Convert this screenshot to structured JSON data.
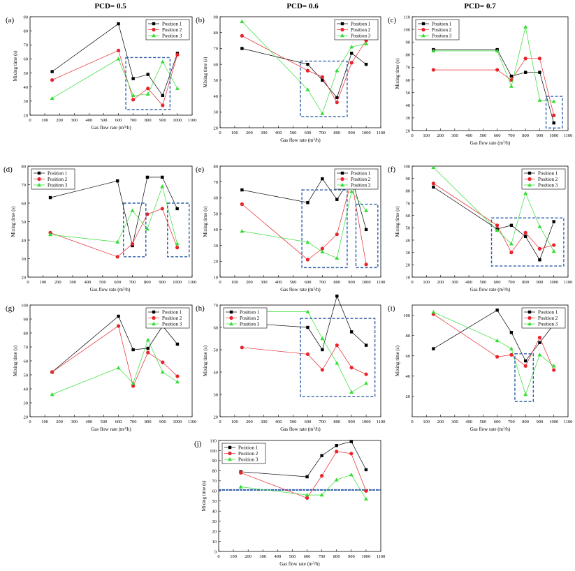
{
  "column_headers": [
    "PCD= 0.5",
    "PCD= 0.6",
    "PCD= 0.7"
  ],
  "colors": {
    "position_1": "#000000",
    "position_2": "#e8232a",
    "position_3": "#33dd33",
    "highlight_box": "#2e5ea8",
    "line_j": "#2e5ea8"
  },
  "chart_data": [
    {
      "id": "a",
      "type": "line",
      "panel_label": "(a)",
      "xlabel": "Gas flow rate (m³/h)",
      "ylabel": "Mixing time (s)",
      "xlim": [
        0,
        1100
      ],
      "ylim": [
        20,
        90
      ],
      "xticks": [
        0,
        100,
        200,
        300,
        400,
        500,
        600,
        700,
        800,
        900,
        1000,
        1100
      ],
      "yticks": [
        20,
        30,
        40,
        50,
        60,
        70,
        80,
        90
      ],
      "legend": "top-right",
      "x": [
        150,
        600,
        700,
        800,
        900,
        1000
      ],
      "series": [
        {
          "name": "Position 1",
          "values": [
            51,
            85,
            46,
            49,
            34,
            64
          ]
        },
        {
          "name": "Position 2",
          "values": [
            45,
            66,
            31,
            39,
            27,
            63
          ]
        },
        {
          "name": "Position 3",
          "values": [
            32,
            60,
            34,
            35,
            58,
            39
          ]
        }
      ],
      "highlight_boxes": [
        {
          "x": [
            650,
            950
          ],
          "y": [
            24,
            61
          ]
        }
      ]
    },
    {
      "id": "b",
      "type": "line",
      "panel_label": "(b)",
      "xlabel": "Gas flow rate (m³/h)",
      "ylabel": "Mixing time (s)",
      "xlim": [
        0,
        1100
      ],
      "ylim": [
        20,
        90
      ],
      "xticks": [
        0,
        100,
        200,
        300,
        400,
        500,
        600,
        700,
        800,
        900,
        1000,
        1100
      ],
      "yticks": [
        20,
        30,
        40,
        50,
        60,
        70,
        80,
        90
      ],
      "legend": "top-right",
      "x": [
        150,
        600,
        700,
        800,
        900,
        1000
      ],
      "series": [
        {
          "name": "Position 1",
          "values": [
            70,
            60,
            50,
            39,
            67,
            60
          ]
        },
        {
          "name": "Position 2",
          "values": [
            78,
            56,
            52,
            36,
            61,
            75
          ]
        },
        {
          "name": "Position 3",
          "values": [
            87,
            44,
            29,
            56,
            71,
            73
          ]
        }
      ],
      "highlight_boxes": [
        {
          "x": [
            550,
            870
          ],
          "y": [
            27,
            62
          ]
        }
      ]
    },
    {
      "id": "c",
      "type": "line",
      "panel_label": "(c)",
      "xlabel": "Gas flow rate (m³/h)",
      "ylabel": "Mixing time (s)",
      "xlim": [
        0,
        1100
      ],
      "ylim": [
        20,
        110
      ],
      "xticks": [
        0,
        100,
        200,
        300,
        400,
        500,
        600,
        700,
        800,
        900,
        1000,
        1100
      ],
      "yticks": [
        20,
        30,
        40,
        50,
        60,
        70,
        80,
        90,
        100,
        110
      ],
      "legend": "top-left",
      "x": [
        150,
        600,
        700,
        800,
        900,
        1000
      ],
      "series": [
        {
          "name": "Position 1",
          "values": [
            84,
            84,
            63,
            66,
            66,
            26
          ]
        },
        {
          "name": "Position 2",
          "values": [
            68,
            68,
            60,
            77,
            77,
            32
          ]
        },
        {
          "name": "Position 3",
          "values": [
            83,
            83,
            55,
            102,
            44,
            43
          ]
        }
      ],
      "highlight_boxes": [
        {
          "x": [
            945,
            1060
          ],
          "y": [
            22,
            47
          ]
        }
      ]
    },
    {
      "id": "d",
      "type": "line",
      "panel_label": "(d)",
      "xlabel": "Gas flow rate (m³/h)",
      "ylabel": "Mixing time (s)",
      "xlim": [
        0,
        1100
      ],
      "ylim": [
        20,
        80
      ],
      "xticks": [
        0,
        100,
        200,
        300,
        400,
        500,
        600,
        700,
        800,
        900,
        1000,
        1100
      ],
      "yticks": [
        20,
        30,
        40,
        50,
        60,
        70,
        80
      ],
      "legend": "top-left",
      "x": [
        150,
        600,
        700,
        800,
        900,
        1000
      ],
      "series": [
        {
          "name": "Position 1",
          "values": [
            63,
            72,
            37,
            74,
            74,
            57
          ]
        },
        {
          "name": "Position 2",
          "values": [
            44,
            31,
            38,
            54,
            57,
            36
          ]
        },
        {
          "name": "Position 3",
          "values": [
            43,
            39,
            56,
            46,
            69,
            38
          ]
        }
      ],
      "highlight_boxes": [
        {
          "x": [
            640,
            790
          ],
          "y": [
            31,
            60
          ]
        },
        {
          "x": [
            935,
            1080
          ],
          "y": [
            31,
            60
          ]
        }
      ]
    },
    {
      "id": "e",
      "type": "line",
      "panel_label": "(e)",
      "xlabel": "Gas flow rate (m³/h)",
      "ylabel": "Mixing time (s)",
      "xlim": [
        0,
        1100
      ],
      "ylim": [
        10,
        80
      ],
      "xticks": [
        0,
        100,
        200,
        300,
        400,
        500,
        600,
        700,
        800,
        900,
        1000,
        1100
      ],
      "yticks": [
        10,
        20,
        30,
        40,
        50,
        60,
        70,
        80
      ],
      "legend": "top-right",
      "x": [
        150,
        600,
        700,
        800,
        900,
        1000
      ],
      "series": [
        {
          "name": "Position 1",
          "values": [
            65,
            57,
            72,
            59,
            73,
            40
          ]
        },
        {
          "name": "Position 2",
          "values": [
            56,
            21,
            28,
            37,
            71,
            18
          ]
        },
        {
          "name": "Position 3",
          "values": [
            39,
            32,
            26,
            22,
            64,
            52
          ]
        }
      ],
      "highlight_boxes": [
        {
          "x": [
            560,
            870
          ],
          "y": [
            16,
            65
          ]
        },
        {
          "x": [
            930,
            1080
          ],
          "y": [
            16,
            56
          ]
        }
      ]
    },
    {
      "id": "f",
      "type": "line",
      "panel_label": "(f)",
      "xlabel": "Gas flow rate (m³/h)",
      "ylabel": "Mixing time (s)",
      "xlim": [
        0,
        1100
      ],
      "ylim": [
        10,
        100
      ],
      "xticks": [
        0,
        100,
        200,
        300,
        400,
        500,
        600,
        700,
        800,
        900,
        1000,
        1100
      ],
      "yticks": [
        10,
        20,
        30,
        40,
        50,
        60,
        70,
        80,
        90,
        100
      ],
      "legend": "top-right",
      "x": [
        150,
        600,
        700,
        800,
        900,
        1000
      ],
      "series": [
        {
          "name": "Position 1",
          "values": [
            83,
            49,
            52,
            43,
            24,
            55
          ]
        },
        {
          "name": "Position 2",
          "values": [
            86,
            52,
            30,
            46,
            33,
            36
          ]
        },
        {
          "name": "Position 3",
          "values": [
            99,
            48,
            37,
            78,
            51,
            31
          ]
        }
      ],
      "highlight_boxes": [
        {
          "x": [
            560,
            1070
          ],
          "y": [
            19,
            58
          ]
        }
      ]
    },
    {
      "id": "g",
      "type": "line",
      "panel_label": "(g)",
      "xlabel": "Gas flow rate (m³/h)",
      "ylabel": "Mixing time (s)",
      "xlim": [
        0,
        1100
      ],
      "ylim": [
        20,
        100
      ],
      "xticks": [
        0,
        100,
        200,
        300,
        400,
        500,
        600,
        700,
        800,
        900,
        1000,
        1100
      ],
      "yticks": [
        20,
        30,
        40,
        50,
        60,
        70,
        80,
        90,
        100
      ],
      "legend": "top-right",
      "x": [
        150,
        600,
        700,
        800,
        900,
        1000
      ],
      "series": [
        {
          "name": "Position 1",
          "values": [
            52,
            92,
            68,
            69,
            85,
            72
          ]
        },
        {
          "name": "Position 2",
          "values": [
            52,
            85,
            42,
            66,
            59,
            49
          ]
        },
        {
          "name": "Position 3",
          "values": [
            36,
            55,
            44,
            75,
            52,
            45
          ]
        }
      ],
      "highlight_boxes": []
    },
    {
      "id": "h",
      "type": "line",
      "panel_label": "(h)",
      "xlabel": "Gas flow rate (m³/h)",
      "ylabel": "Mixing time (s)",
      "xlim": [
        0,
        1100
      ],
      "ylim": [
        20,
        70
      ],
      "xticks": [
        0,
        100,
        200,
        300,
        400,
        500,
        600,
        700,
        800,
        900,
        1000,
        1100
      ],
      "yticks": [
        20,
        30,
        40,
        50,
        60,
        70
      ],
      "legend": "top-left",
      "x": [
        150,
        600,
        700,
        800,
        900,
        1000
      ],
      "series": [
        {
          "name": "Position 1",
          "values": [
            62,
            60,
            50,
            74,
            58,
            52
          ]
        },
        {
          "name": "Position 2",
          "values": [
            51,
            48,
            41,
            52,
            42,
            39
          ]
        },
        {
          "name": "Position 3",
          "values": [
            67,
            67,
            55,
            44,
            31,
            35
          ]
        }
      ],
      "highlight_boxes": [
        {
          "x": [
            550,
            1060
          ],
          "y": [
            29,
            64
          ]
        }
      ]
    },
    {
      "id": "i",
      "type": "line",
      "panel_label": "(i)",
      "xlabel": "Gas flow rate (m³/h)",
      "ylabel": "Mixing time (s)",
      "xlim": [
        0,
        1100
      ],
      "ylim": [
        0,
        110
      ],
      "xticks": [
        0,
        100,
        200,
        300,
        400,
        500,
        600,
        700,
        800,
        900,
        1000,
        1100
      ],
      "yticks": [
        20,
        40,
        60,
        80,
        100
      ],
      "legend": "top-right",
      "x": [
        150,
        600,
        700,
        800,
        900,
        1000
      ],
      "series": [
        {
          "name": "Position 1",
          "values": [
            67,
            105,
            83,
            55,
            73,
            91
          ]
        },
        {
          "name": "Position 2",
          "values": [
            101,
            59,
            61,
            50,
            78,
            46
          ]
        },
        {
          "name": "Position 3",
          "values": [
            103,
            75,
            67,
            22,
            61,
            50
          ]
        }
      ],
      "highlight_boxes": [
        {
          "x": [
            725,
            855
          ],
          "y": [
            15,
            62
          ]
        }
      ]
    },
    {
      "id": "j",
      "type": "line",
      "panel_label": "(j)",
      "xlabel": "Gas flow rate (m³/h)",
      "ylabel": "Mixing time (s)",
      "xlim": [
        0,
        1100
      ],
      "ylim": [
        0,
        110
      ],
      "xticks": [
        0,
        100,
        200,
        300,
        400,
        500,
        600,
        700,
        800,
        900,
        1000,
        1100
      ],
      "yticks": [
        0,
        10,
        20,
        30,
        40,
        50,
        60,
        70,
        80,
        90,
        100,
        110
      ],
      "legend": "top-left",
      "x": [
        150,
        600,
        700,
        800,
        900,
        1000
      ],
      "series": [
        {
          "name": "Position 1",
          "values": [
            79,
            74,
            95,
            105,
            109,
            81
          ]
        },
        {
          "name": "Position 2",
          "values": [
            78,
            53,
            75,
            99,
            97,
            60
          ]
        },
        {
          "name": "Position 3",
          "values": [
            64,
            56,
            56,
            71,
            76,
            52
          ]
        }
      ],
      "highlight_boxes": [],
      "reference_line": 61
    }
  ]
}
